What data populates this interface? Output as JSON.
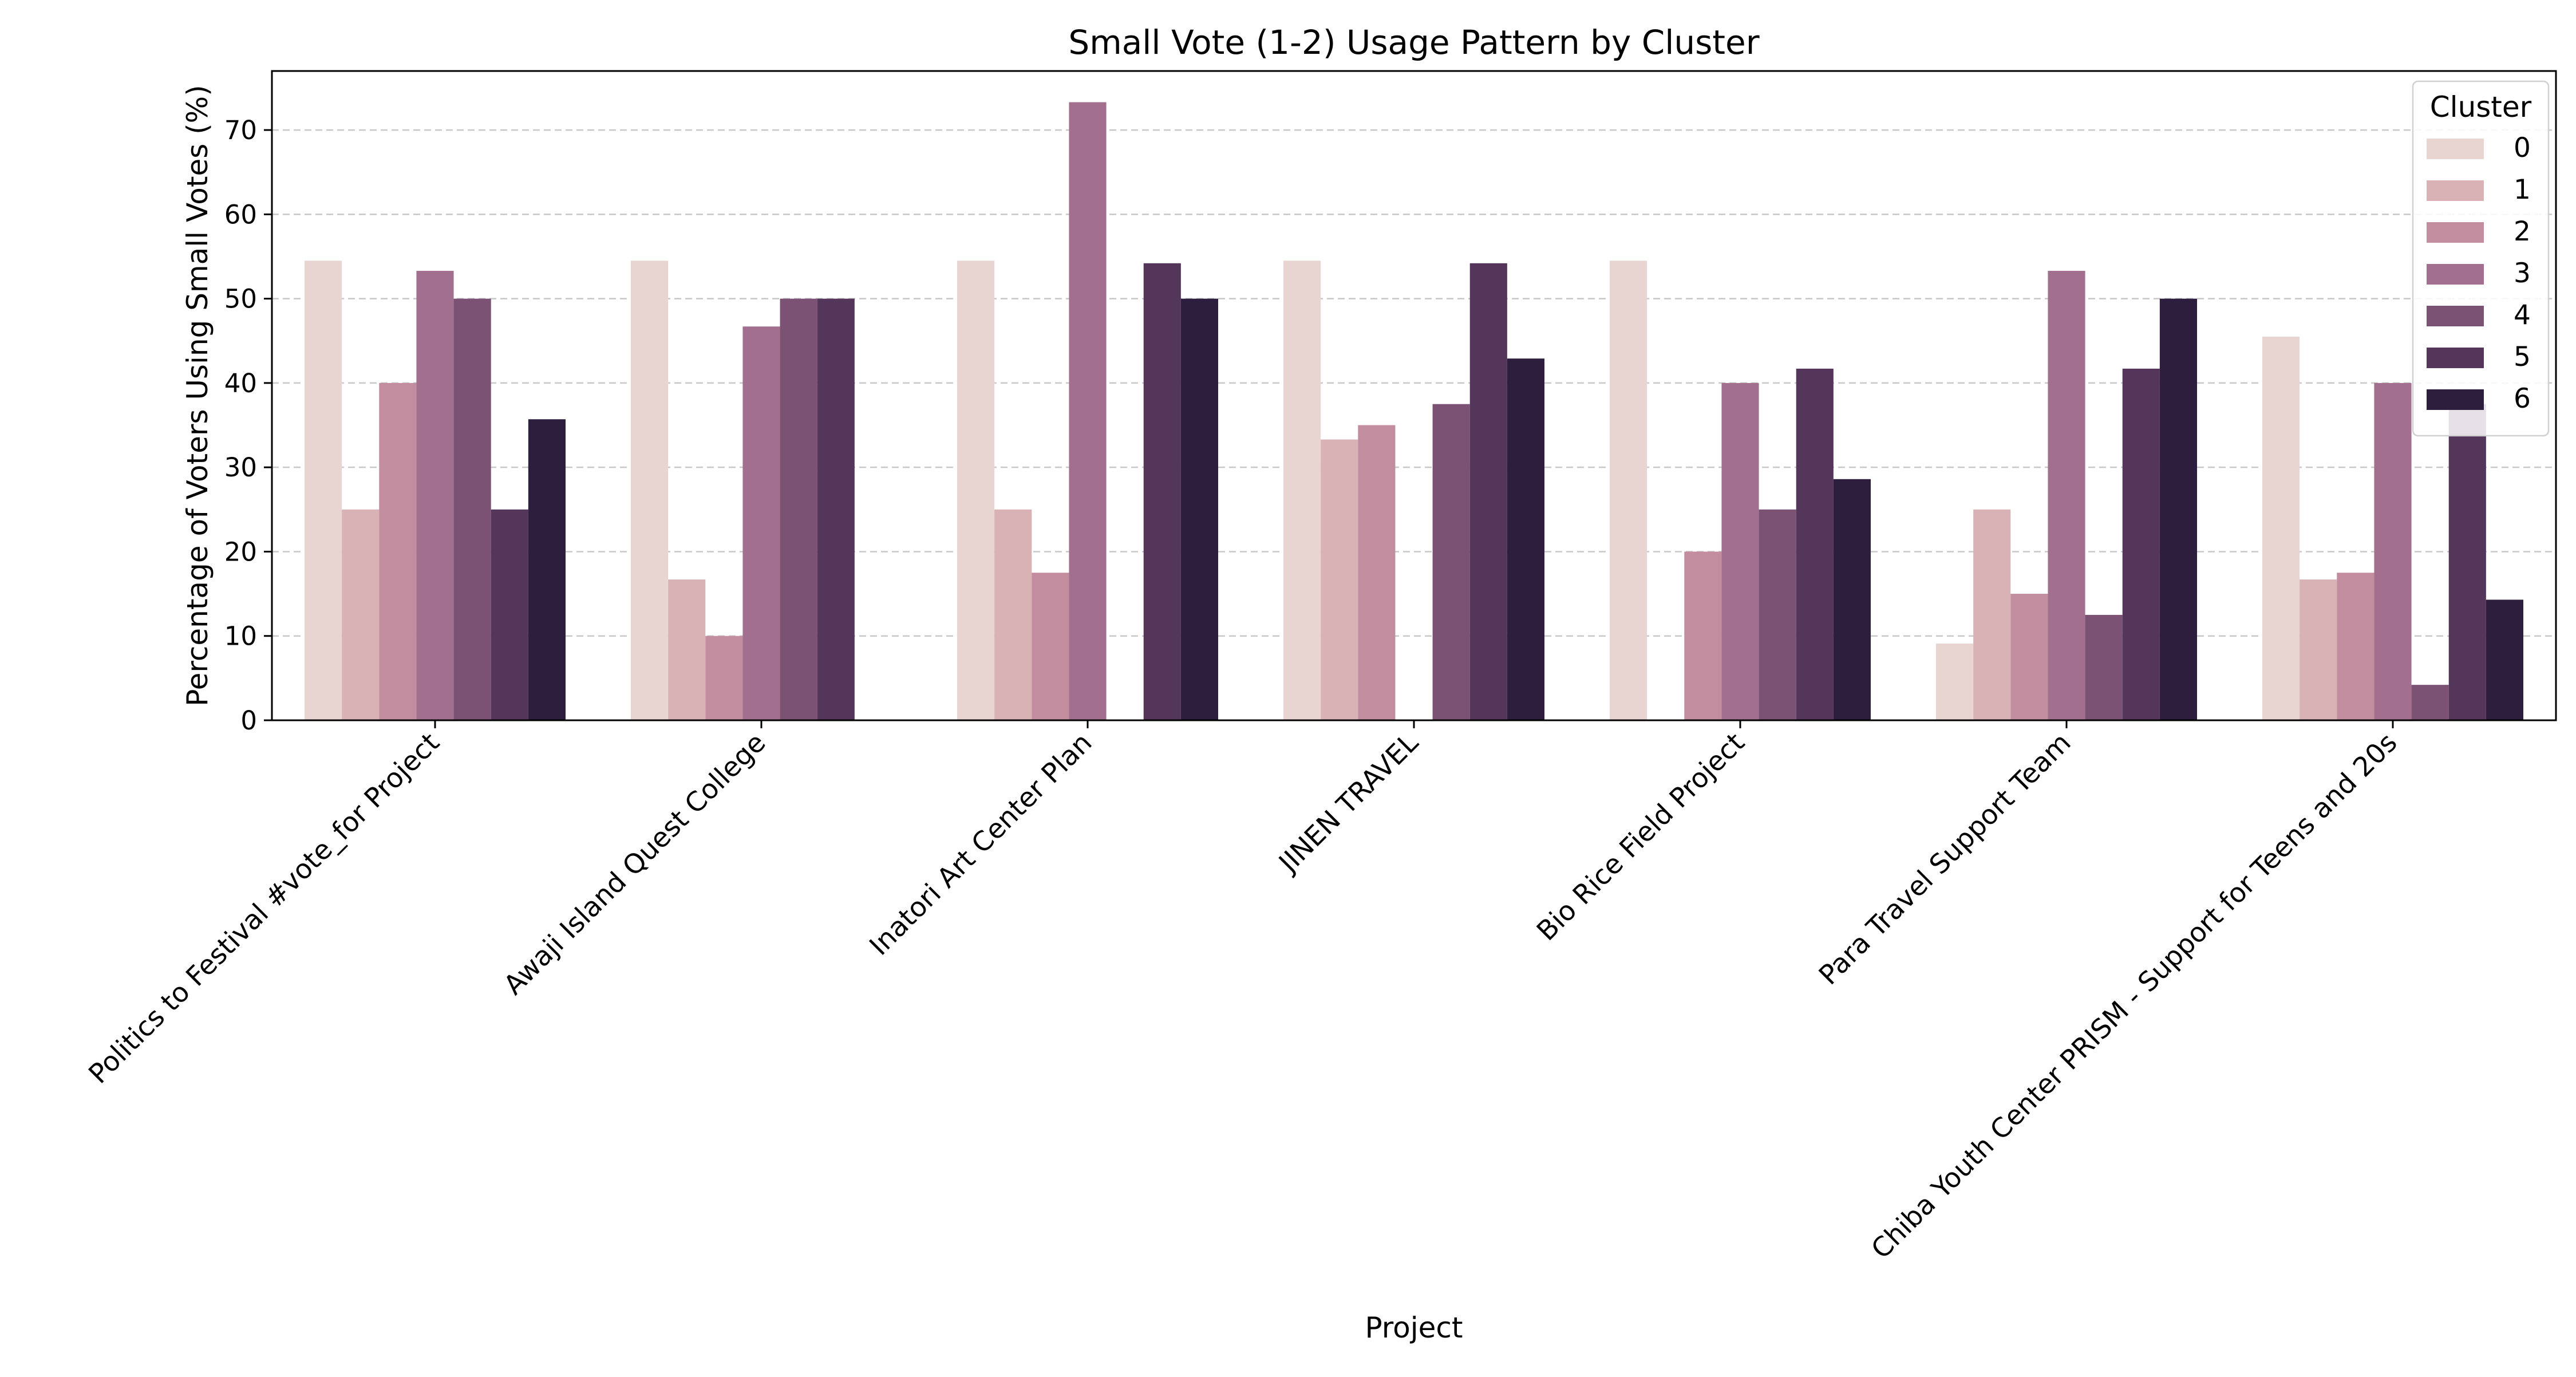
{
  "chart_data": {
    "type": "bar",
    "title": "Small Vote (1-2) Usage Pattern by Cluster",
    "xlabel": "Project",
    "ylabel": "Percentage of Voters Using Small Votes (%)",
    "ylim": [
      0,
      77
    ],
    "yticks": [
      0,
      10,
      20,
      30,
      40,
      50,
      60,
      70
    ],
    "grid": "y-dashed",
    "legend": {
      "title": "Cluster",
      "position": "top-right"
    },
    "categories": [
      "Politics to Festival #vote_for Project",
      "Awaji Island Quest College",
      "Inatori Art Center Plan",
      "JINEN TRAVEL",
      "Bio Rice Field Project",
      "Para Travel Support Team",
      "Chiba Youth Center PRISM - Support for Teens and 20s"
    ],
    "series": [
      {
        "name": "0",
        "color": "#e8d4d0",
        "values": [
          54.5,
          54.5,
          54.5,
          54.5,
          54.5,
          9.1,
          45.5
        ]
      },
      {
        "name": "1",
        "color": "#d9b2b6",
        "values": [
          25.0,
          16.7,
          25.0,
          33.3,
          0,
          25.0,
          16.7
        ]
      },
      {
        "name": "2",
        "color": "#c28d9e",
        "values": [
          40.0,
          10.0,
          17.5,
          35.0,
          20.0,
          15.0,
          17.5
        ]
      },
      {
        "name": "3",
        "color": "#a2708e",
        "values": [
          53.3,
          46.7,
          73.3,
          0,
          40.0,
          53.3,
          40.0
        ]
      },
      {
        "name": "4",
        "color": "#7b5174",
        "values": [
          50.0,
          50.0,
          0,
          37.5,
          25.0,
          12.5,
          4.2
        ]
      },
      {
        "name": "5",
        "color": "#53365a",
        "values": [
          25.0,
          50.0,
          54.2,
          54.2,
          41.7,
          41.7,
          37.5
        ]
      },
      {
        "name": "6",
        "color": "#2d1e3e",
        "values": [
          35.7,
          0,
          50.0,
          42.9,
          28.6,
          50.0,
          14.3
        ]
      }
    ]
  }
}
